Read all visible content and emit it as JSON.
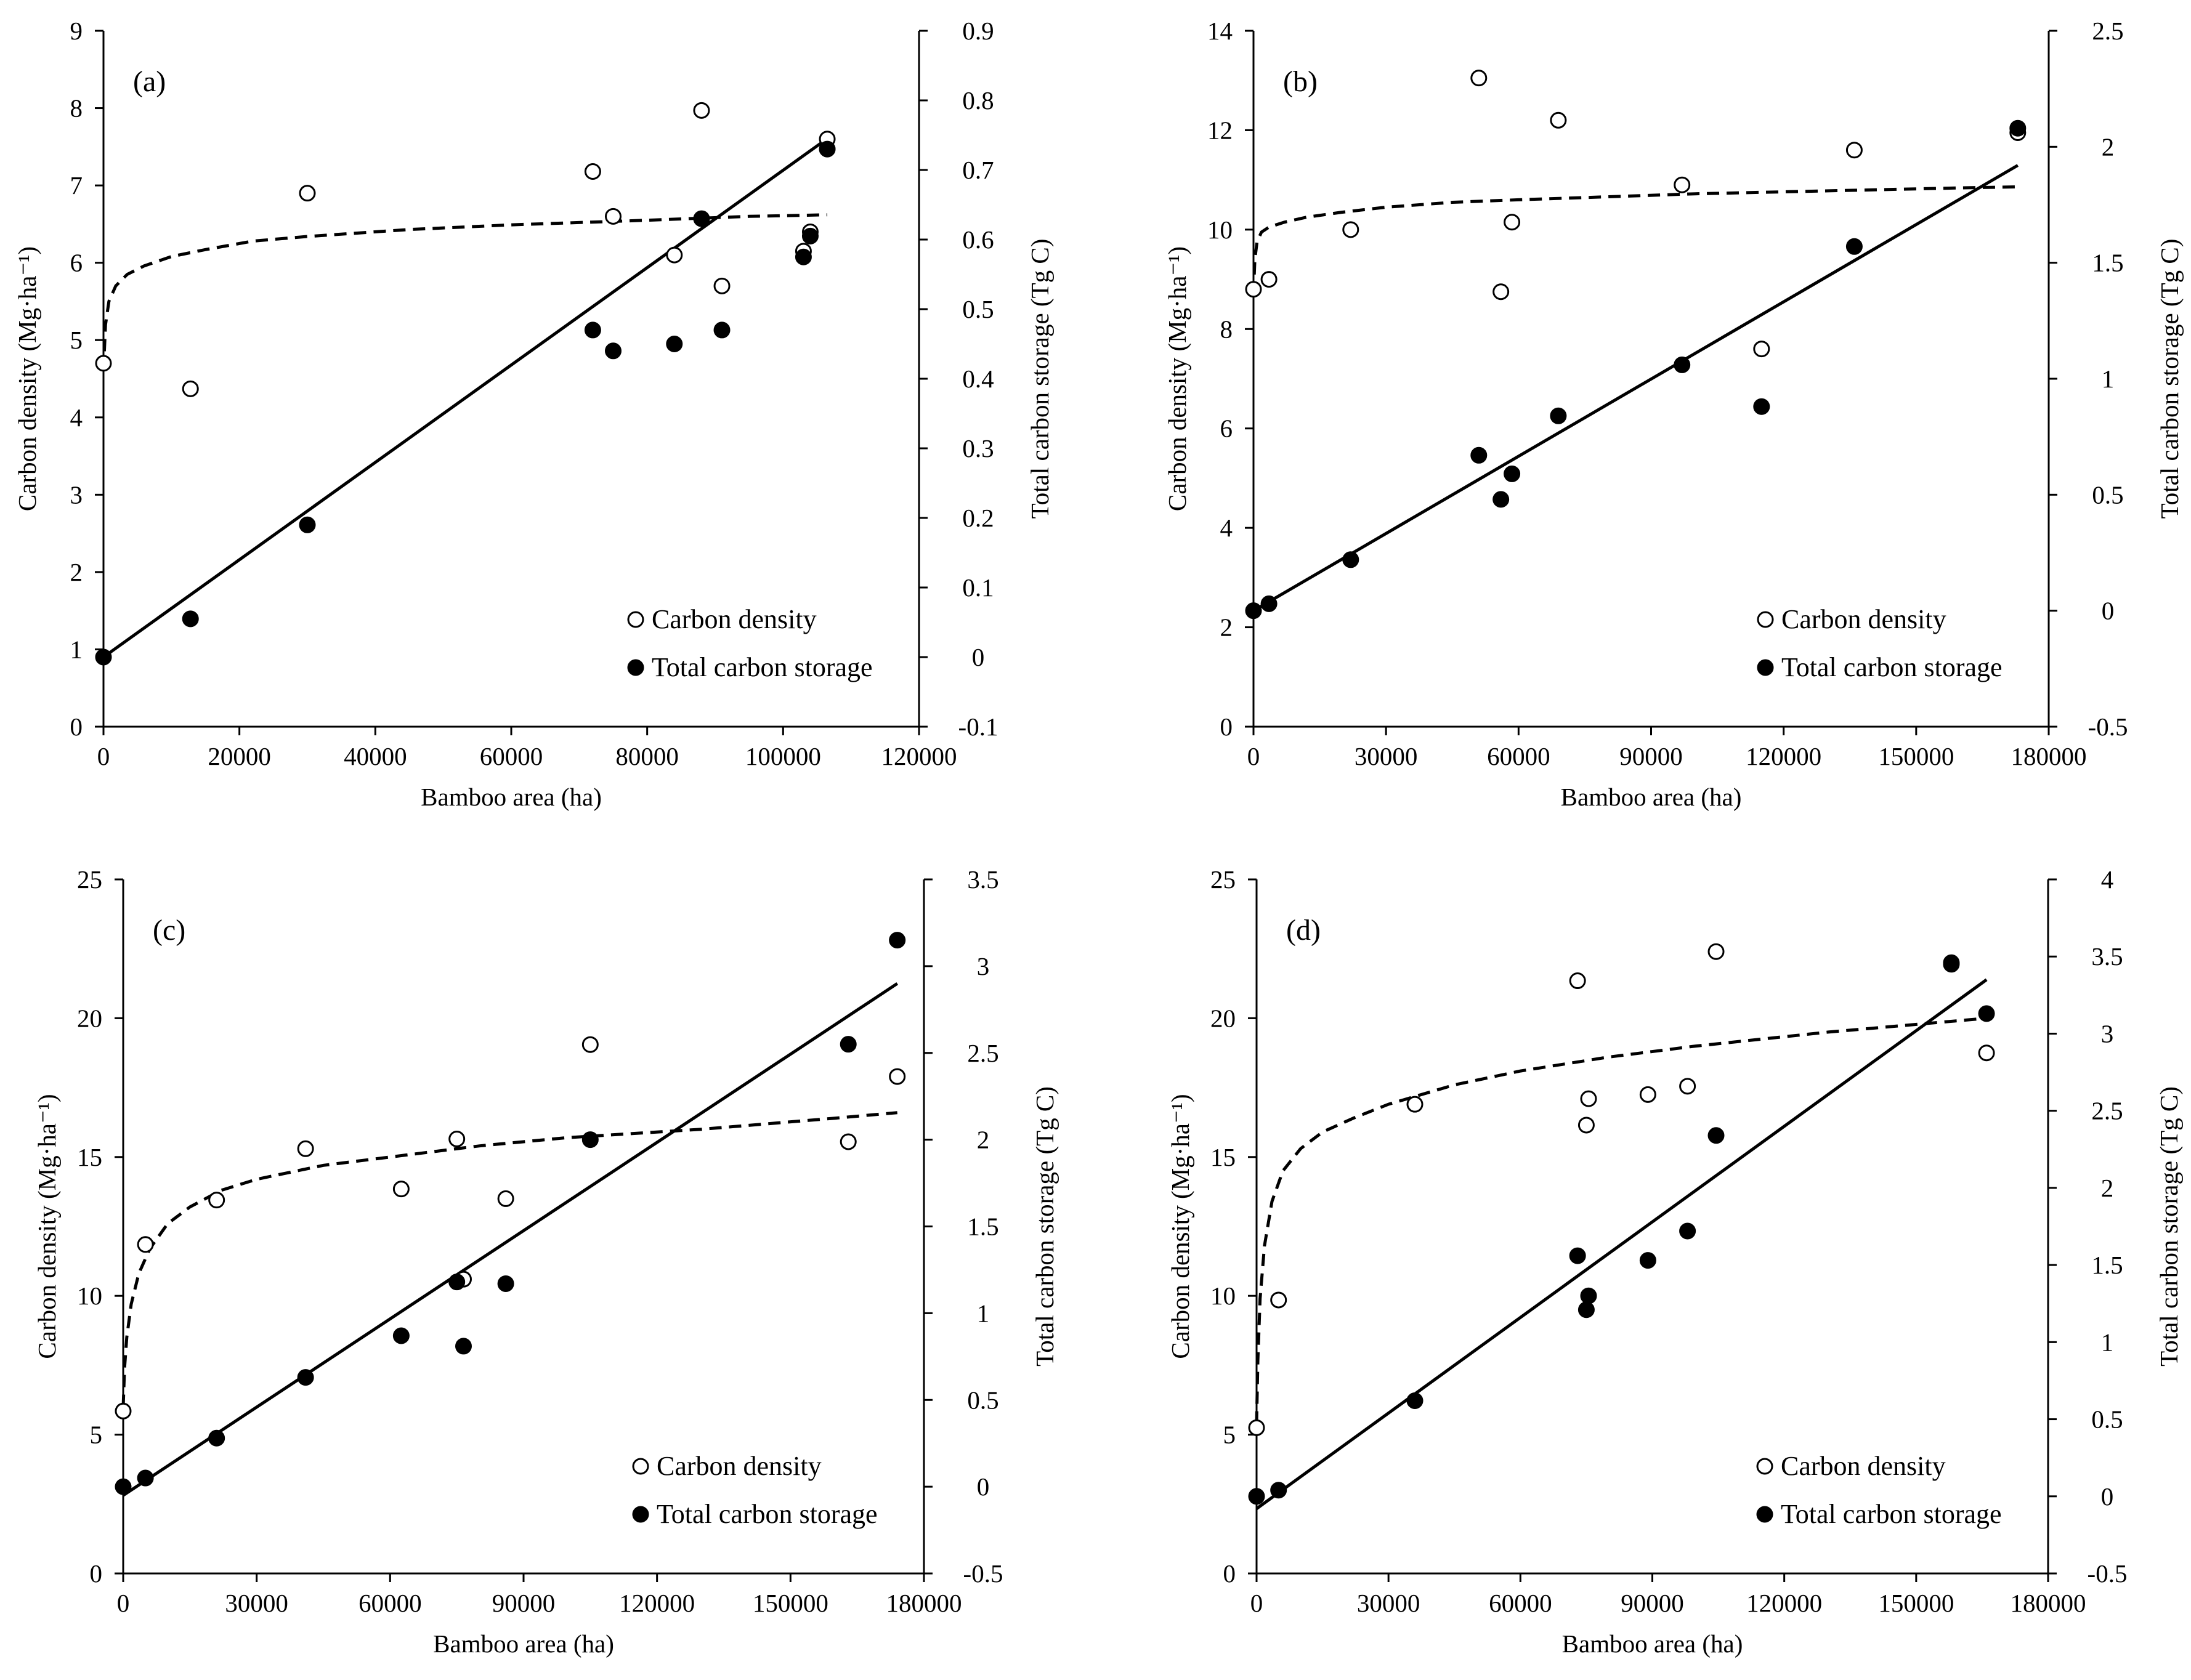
{
  "figure": {
    "background": "#ffffff",
    "foreground": "#000000"
  },
  "chart_data": [
    {
      "type": "scatter",
      "panel_label": "(a)",
      "xlabel": "Bamboo area (ha)",
      "ylabel": "Carbon density  (Mg·ha⁻¹)",
      "y2label": "Total carbon storage  (Tg C)",
      "xlim": [
        0,
        120000
      ],
      "ylim": [
        0,
        9
      ],
      "y2lim": [
        -0.1,
        0.9
      ],
      "xticks": [
        0,
        20000,
        40000,
        60000,
        80000,
        100000,
        120000
      ],
      "xtick_labels": [
        "0",
        "20000",
        "40000",
        "60000",
        "80000",
        "100000",
        "120000"
      ],
      "yticks": [
        0,
        1,
        2,
        3,
        4,
        5,
        6,
        7,
        8,
        9
      ],
      "ytick_labels": [
        "0",
        "1",
        "2",
        "3",
        "4",
        "5",
        "6",
        "7",
        "8",
        "9"
      ],
      "y2ticks": [
        -0.1,
        0,
        0.1,
        0.2,
        0.3,
        0.4,
        0.5,
        0.6,
        0.7,
        0.8,
        0.9
      ],
      "y2tick_labels": [
        "-0.1",
        "0",
        "0.1",
        "0.2",
        "0.3",
        "0.4",
        "0.5",
        "0.6",
        "0.7",
        "0.8",
        "0.9"
      ],
      "legend": [
        "Carbon density",
        "Total carbon storage"
      ],
      "legend_position": "bottom-right",
      "series": [
        {
          "name": "Carbon density",
          "axis": "left",
          "marker": "open-circle",
          "x": [
            0,
            12800,
            30000,
            72000,
            75000,
            84000,
            88000,
            91000,
            103000,
            104000,
            106500
          ],
          "y": [
            4.7,
            4.37,
            6.9,
            7.18,
            6.6,
            6.1,
            7.97,
            5.7,
            6.15,
            6.4,
            7.6
          ]
        },
        {
          "name": "Total carbon storage",
          "axis": "right",
          "marker": "filled-circle",
          "x": [
            0,
            12800,
            30000,
            72000,
            75000,
            84000,
            88000,
            91000,
            103000,
            104000,
            106500
          ],
          "y": [
            0.0,
            0.055,
            0.19,
            0.47,
            0.44,
            0.45,
            0.63,
            0.47,
            0.575,
            0.605,
            0.73
          ]
        }
      ],
      "fits": [
        {
          "name": "Carbon density trend",
          "axis": "left",
          "style": "dashed",
          "x": [
            0,
            300,
            800,
            1800,
            3500,
            6000,
            10000,
            15000,
            22000,
            30000,
            45000,
            60000,
            80000,
            95000,
            106500
          ],
          "y": [
            4.6,
            5.2,
            5.5,
            5.7,
            5.85,
            5.96,
            6.08,
            6.17,
            6.28,
            6.34,
            6.43,
            6.49,
            6.55,
            6.6,
            6.62
          ]
        },
        {
          "name": "Total carbon storage trend",
          "axis": "right",
          "style": "solid",
          "x": [
            0,
            106500
          ],
          "y": [
            0.0,
            0.745
          ]
        }
      ]
    },
    {
      "type": "scatter",
      "panel_label": "(b)",
      "xlabel": "Bamboo area (ha)",
      "ylabel": "Carbon density  (Mg·ha⁻¹)",
      "y2label": "Total carbon storage  (Tg C)",
      "xlim": [
        0,
        180000
      ],
      "ylim": [
        0,
        14
      ],
      "y2lim": [
        -0.5,
        2.5
      ],
      "xticks": [
        0,
        30000,
        60000,
        90000,
        120000,
        150000,
        180000
      ],
      "xtick_labels": [
        "0",
        "30000",
        "60000",
        "90000",
        "120000",
        "150000",
        "180000"
      ],
      "yticks": [
        0,
        2,
        4,
        6,
        8,
        10,
        12,
        14
      ],
      "ytick_labels": [
        "0",
        "2",
        "4",
        "6",
        "8",
        "10",
        "12",
        "14"
      ],
      "y2ticks": [
        -0.5,
        0,
        0.5,
        1,
        1.5,
        2,
        2.5
      ],
      "y2tick_labels": [
        "-0.5",
        "0",
        "0.5",
        "1",
        "1.5",
        "2",
        "2.5"
      ],
      "legend": [
        "Carbon density",
        "Total carbon storage"
      ],
      "legend_position": "bottom-right",
      "series": [
        {
          "name": "Carbon density",
          "axis": "left",
          "marker": "open-circle",
          "x": [
            0,
            3500,
            22000,
            51000,
            56000,
            58500,
            69000,
            97000,
            115000,
            136000,
            173000
          ],
          "y": [
            8.8,
            9.0,
            10.0,
            13.05,
            8.75,
            10.15,
            12.2,
            10.9,
            7.6,
            11.6,
            11.95
          ]
        },
        {
          "name": "Total carbon storage",
          "axis": "right",
          "marker": "filled-circle",
          "x": [
            0,
            3500,
            22000,
            51000,
            56000,
            58500,
            69000,
            97000,
            115000,
            136000,
            173000
          ],
          "y": [
            0.0,
            0.03,
            0.22,
            0.67,
            0.48,
            0.59,
            0.84,
            1.06,
            0.88,
            1.57,
            2.08
          ]
        }
      ],
      "fits": [
        {
          "name": "Carbon density trend",
          "axis": "left",
          "style": "dashed",
          "x": [
            0,
            300,
            800,
            1800,
            3500,
            7000,
            12000,
            20000,
            30000,
            45000,
            60000,
            80000,
            100000,
            130000,
            160000,
            173000
          ],
          "y": [
            8.7,
            9.4,
            9.75,
            9.95,
            10.05,
            10.15,
            10.25,
            10.35,
            10.45,
            10.55,
            10.6,
            10.66,
            10.72,
            10.78,
            10.84,
            10.86
          ]
        },
        {
          "name": "Total carbon storage trend",
          "axis": "right",
          "style": "solid",
          "x": [
            0,
            173000
          ],
          "y": [
            0.0,
            1.92
          ]
        }
      ]
    },
    {
      "type": "scatter",
      "panel_label": "(c)",
      "xlabel": "Bamboo area (ha)",
      "ylabel": "Carbon density  (Mg·ha⁻¹)",
      "y2label": "Total carbon storage  (Tg C)",
      "xlim": [
        0,
        180000
      ],
      "ylim": [
        0,
        25
      ],
      "y2lim": [
        -0.5,
        3.5
      ],
      "xticks": [
        0,
        30000,
        60000,
        90000,
        120000,
        150000,
        180000
      ],
      "xtick_labels": [
        "0",
        "30000",
        "60000",
        "90000",
        "120000",
        "150000",
        "180000"
      ],
      "yticks": [
        0,
        5,
        10,
        15,
        20,
        25
      ],
      "ytick_labels": [
        "0",
        "5",
        "10",
        "15",
        "20",
        "25"
      ],
      "y2ticks": [
        -0.5,
        0,
        0.5,
        1,
        1.5,
        2,
        2.5,
        3,
        3.5
      ],
      "y2tick_labels": [
        "-0.5",
        "0",
        "0.5",
        "1",
        "1.5",
        "2",
        "2.5",
        "3",
        "3.5"
      ],
      "legend": [
        "Carbon density",
        "Total carbon storage"
      ],
      "legend_position": "bottom-right",
      "series": [
        {
          "name": "Carbon density",
          "axis": "left",
          "marker": "open-circle",
          "x": [
            0,
            5000,
            21000,
            41000,
            62500,
            75000,
            76500,
            86000,
            105000,
            163000,
            174000
          ],
          "y": [
            5.85,
            11.85,
            13.45,
            15.3,
            13.85,
            15.65,
            10.6,
            13.5,
            19.05,
            15.55,
            17.9
          ]
        },
        {
          "name": "Total carbon storage",
          "axis": "right",
          "marker": "filled-circle",
          "x": [
            0,
            5000,
            21000,
            41000,
            62500,
            75000,
            76500,
            86000,
            105000,
            163000,
            174000
          ],
          "y": [
            0.0,
            0.05,
            0.28,
            0.63,
            0.87,
            1.18,
            0.81,
            1.17,
            2.0,
            2.55,
            3.15
          ]
        }
      ],
      "fits": [
        {
          "name": "Carbon density trend",
          "axis": "left",
          "style": "dashed",
          "x": [
            0,
            300,
            800,
            1800,
            3500,
            6000,
            10000,
            15000,
            22000,
            30000,
            45000,
            60000,
            80000,
            100000,
            130000,
            160000,
            174000
          ],
          "y": [
            6.0,
            7.4,
            8.5,
            9.7,
            10.8,
            11.7,
            12.6,
            13.2,
            13.8,
            14.2,
            14.7,
            15.0,
            15.4,
            15.7,
            16.0,
            16.4,
            16.6
          ]
        },
        {
          "name": "Total carbon storage trend",
          "axis": "right",
          "style": "solid",
          "x": [
            0,
            174000
          ],
          "y": [
            -0.05,
            2.9
          ]
        }
      ]
    },
    {
      "type": "scatter",
      "panel_label": "(d)",
      "xlabel": "Bamboo area (ha)",
      "ylabel": "Carbon density  (Mg·ha⁻¹)",
      "y2label": "Total carbon storage  (Tg C)",
      "xlim": [
        0,
        180000
      ],
      "ylim": [
        0,
        25
      ],
      "y2lim": [
        -0.5,
        4
      ],
      "xticks": [
        0,
        30000,
        60000,
        90000,
        120000,
        150000,
        180000
      ],
      "xtick_labels": [
        "0",
        "30000",
        "60000",
        "90000",
        "120000",
        "150000",
        "180000"
      ],
      "yticks": [
        0,
        5,
        10,
        15,
        20,
        25
      ],
      "ytick_labels": [
        "0",
        "5",
        "10",
        "15",
        "20",
        "25"
      ],
      "y2ticks": [
        -0.5,
        0,
        0.5,
        1,
        1.5,
        2,
        2.5,
        3,
        3.5,
        4
      ],
      "y2tick_labels": [
        "-0.5",
        "0",
        "0.5",
        "1",
        "1.5",
        "2",
        "2.5",
        "3",
        "3.5",
        "4"
      ],
      "legend": [
        "Carbon density",
        "Total carbon storage"
      ],
      "legend_position": "bottom-right",
      "series": [
        {
          "name": "Carbon density",
          "axis": "left",
          "marker": "open-circle",
          "x": [
            0,
            5000,
            36000,
            73000,
            75000,
            75500,
            89000,
            98000,
            104500,
            158000,
            166000
          ],
          "y": [
            5.25,
            9.85,
            16.9,
            21.35,
            16.15,
            17.1,
            17.25,
            17.55,
            22.4,
            22.0,
            18.75
          ]
        },
        {
          "name": "Total carbon storage",
          "axis": "right",
          "marker": "filled-circle",
          "x": [
            0,
            5000,
            36000,
            73000,
            75000,
            75500,
            89000,
            98000,
            104500,
            158000,
            166000
          ],
          "y": [
            0.0,
            0.04,
            0.62,
            1.56,
            1.21,
            1.3,
            1.53,
            1.72,
            2.34,
            3.45,
            3.13
          ]
        }
      ],
      "fits": [
        {
          "name": "Carbon density trend",
          "axis": "left",
          "style": "dashed",
          "x": [
            0,
            300,
            800,
            1800,
            3500,
            6000,
            10000,
            15000,
            22000,
            30000,
            45000,
            60000,
            80000,
            100000,
            130000,
            166000
          ],
          "y": [
            5.4,
            7.7,
            9.9,
            11.8,
            13.4,
            14.5,
            15.3,
            15.9,
            16.4,
            16.9,
            17.6,
            18.1,
            18.6,
            19.0,
            19.5,
            20.0
          ]
        },
        {
          "name": "Total carbon storage trend",
          "axis": "right",
          "style": "solid",
          "x": [
            0,
            166000
          ],
          "y": [
            -0.08,
            3.35
          ]
        }
      ]
    }
  ]
}
